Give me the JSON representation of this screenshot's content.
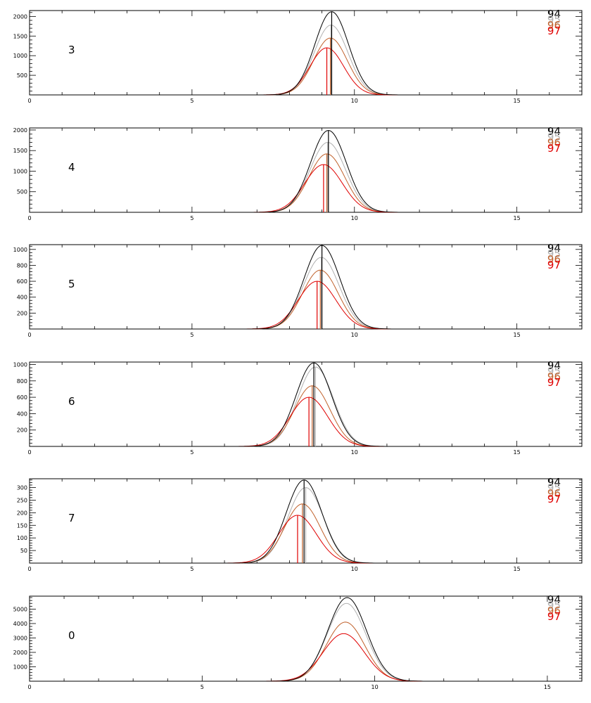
{
  "figure": {
    "background": "#ffffff",
    "legend_placement": "top-right"
  },
  "chart_data": [
    {
      "type": "line",
      "panel_label": "3",
      "xlim": [
        0,
        17
      ],
      "ylim": [
        0,
        2150
      ],
      "xticks": [
        0,
        5,
        10,
        15
      ],
      "yticks": [
        500,
        1000,
        1500,
        2000
      ],
      "grid": false,
      "series": [
        {
          "name": "94",
          "color": "#000000",
          "peak": 2120,
          "center": 9.3,
          "width": 0.52,
          "marker_x": 9.3
        },
        {
          "name": "95",
          "color": "#b0b0b0",
          "peak": 1780,
          "center": 9.28,
          "width": 0.52,
          "marker_x": 9.28
        },
        {
          "name": "96",
          "color": "#c0612b",
          "peak": 1450,
          "center": 9.26,
          "width": 0.52,
          "marker_x": 9.26
        },
        {
          "name": "97",
          "color": "#e00000",
          "peak": 1200,
          "center": 9.15,
          "width": 0.52,
          "marker_x": 9.15
        }
      ]
    },
    {
      "type": "line",
      "panel_label": "4",
      "xlim": [
        0,
        17
      ],
      "ylim": [
        0,
        2050
      ],
      "xticks": [
        0,
        5,
        10,
        15
      ],
      "yticks": [
        500,
        1000,
        1500,
        2000
      ],
      "grid": false,
      "series": [
        {
          "name": "94",
          "color": "#000000",
          "peak": 1990,
          "center": 9.2,
          "width": 0.55,
          "marker_x": 9.2
        },
        {
          "name": "95",
          "color": "#b0b0b0",
          "peak": 1700,
          "center": 9.18,
          "width": 0.55,
          "marker_x": 9.18
        },
        {
          "name": "96",
          "color": "#c0612b",
          "peak": 1420,
          "center": 9.15,
          "width": 0.55,
          "marker_x": 9.15
        },
        {
          "name": "97",
          "color": "#e00000",
          "peak": 1160,
          "center": 9.05,
          "width": 0.58,
          "marker_x": 9.05
        }
      ]
    },
    {
      "type": "line",
      "panel_label": "5",
      "xlim": [
        0,
        17
      ],
      "ylim": [
        0,
        1060
      ],
      "xticks": [
        0,
        5,
        10,
        15
      ],
      "yticks": [
        200,
        400,
        600,
        800,
        1000
      ],
      "grid": false,
      "series": [
        {
          "name": "94",
          "color": "#000000",
          "peak": 1050,
          "center": 9.0,
          "width": 0.55,
          "marker_x": 9.0
        },
        {
          "name": "95",
          "color": "#b0b0b0",
          "peak": 900,
          "center": 8.98,
          "width": 0.55,
          "marker_x": 8.98
        },
        {
          "name": "96",
          "color": "#c0612b",
          "peak": 740,
          "center": 8.95,
          "width": 0.55,
          "marker_x": 8.95
        },
        {
          "name": "97",
          "color": "#e00000",
          "peak": 600,
          "center": 8.85,
          "width": 0.58,
          "marker_x": 8.85
        }
      ]
    },
    {
      "type": "line",
      "panel_label": "6",
      "xlim": [
        0,
        17
      ],
      "ylim": [
        0,
        1030
      ],
      "xticks": [
        0,
        5,
        10,
        15
      ],
      "yticks": [
        200,
        400,
        600,
        800,
        1000
      ],
      "grid": false,
      "series": [
        {
          "name": "94",
          "color": "#000000",
          "peak": 1020,
          "center": 8.75,
          "width": 0.55,
          "marker_x": 8.75
        },
        {
          "name": "95",
          "color": "#b0b0b0",
          "peak": 970,
          "center": 8.8,
          "width": 0.55,
          "marker_x": 8.8
        },
        {
          "name": "96",
          "color": "#c0612b",
          "peak": 740,
          "center": 8.7,
          "width": 0.55,
          "marker_x": 8.7
        },
        {
          "name": "97",
          "color": "#e00000",
          "peak": 600,
          "center": 8.6,
          "width": 0.58,
          "marker_x": 8.6
        }
      ]
    },
    {
      "type": "line",
      "panel_label": "7",
      "xlim": [
        0,
        17
      ],
      "ylim": [
        0,
        335
      ],
      "xticks": [
        0,
        5,
        10,
        15
      ],
      "yticks": [
        50,
        100,
        150,
        200,
        250,
        300
      ],
      "grid": false,
      "series": [
        {
          "name": "94",
          "color": "#000000",
          "peak": 330,
          "center": 8.45,
          "width": 0.55,
          "marker_x": 8.45
        },
        {
          "name": "95",
          "color": "#b0b0b0",
          "peak": 300,
          "center": 8.5,
          "width": 0.55,
          "marker_x": 8.5
        },
        {
          "name": "96",
          "color": "#c0612b",
          "peak": 235,
          "center": 8.4,
          "width": 0.55,
          "marker_x": 8.4
        },
        {
          "name": "97",
          "color": "#e00000",
          "peak": 190,
          "center": 8.25,
          "width": 0.58,
          "marker_x": 8.25
        }
      ]
    },
    {
      "type": "line",
      "panel_label": "0",
      "xlim": [
        0,
        16
      ],
      "ylim": [
        0,
        5900
      ],
      "xticks": [
        0,
        5,
        10,
        15
      ],
      "yticks": [
        1000,
        2000,
        3000,
        4000,
        5000
      ],
      "grid": false,
      "series": [
        {
          "name": "94",
          "color": "#000000",
          "peak": 5800,
          "center": 9.2,
          "width": 0.56
        },
        {
          "name": "95",
          "color": "#b0b0b0",
          "peak": 5400,
          "center": 9.18,
          "width": 0.56
        },
        {
          "name": "96",
          "color": "#c0612b",
          "peak": 4100,
          "center": 9.15,
          "width": 0.56
        },
        {
          "name": "97",
          "color": "#e00000",
          "peak": 3300,
          "center": 9.1,
          "width": 0.6
        }
      ]
    }
  ]
}
